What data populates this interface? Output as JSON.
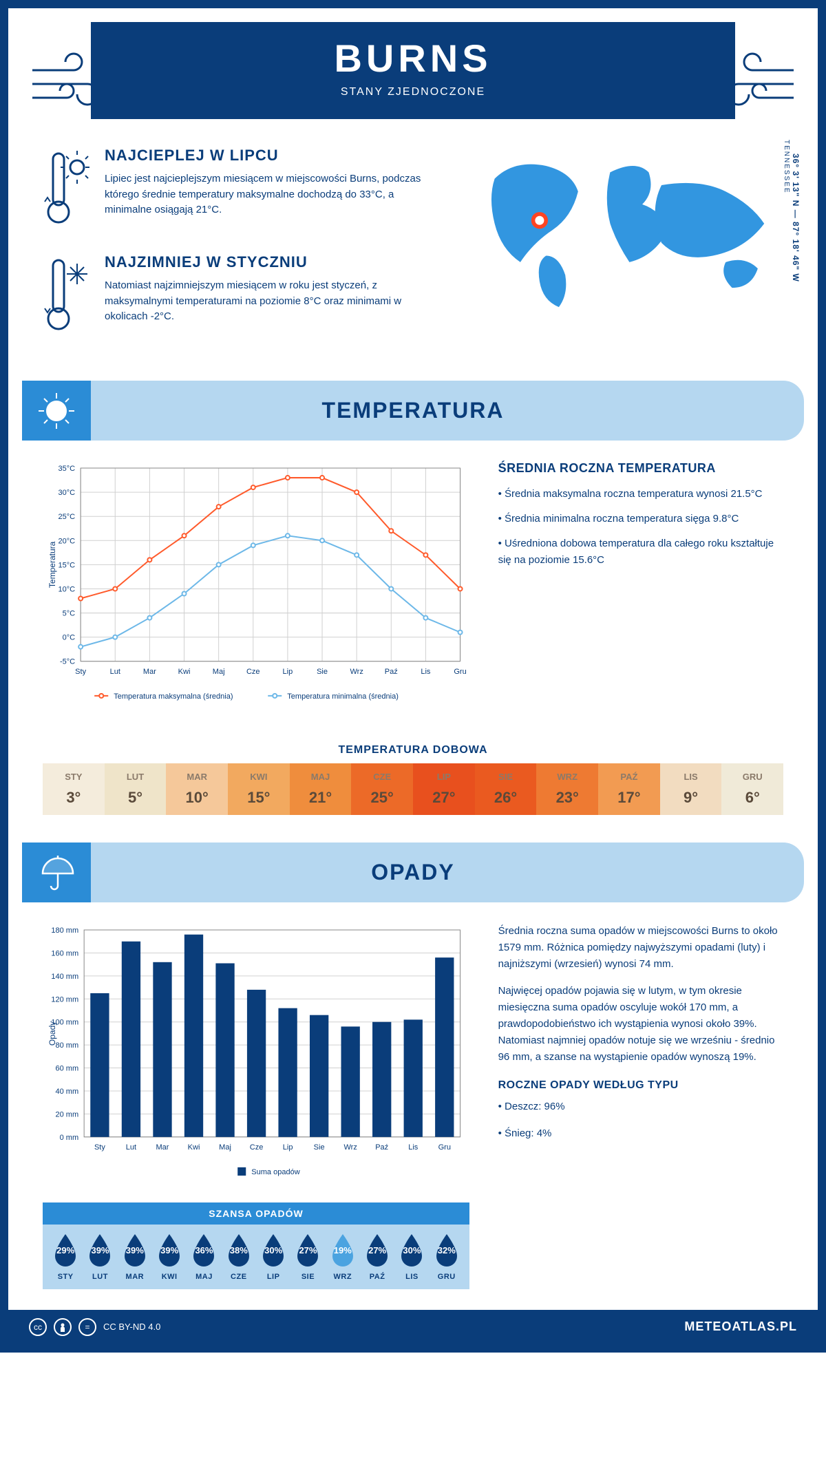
{
  "header": {
    "title": "BURNS",
    "subtitle": "STANY ZJEDNOCZONE"
  },
  "location": {
    "state": "TENNESSEE",
    "coords": "36° 3' 13\" N — 87° 18' 46\" W",
    "marker_color": "#ff4422"
  },
  "intro": {
    "hot": {
      "title": "NAJCIEPLEJ W LIPCU",
      "text": "Lipiec jest najcieplejszym miesiącem w miejscowości Burns, podczas którego średnie temperatury maksymalne dochodzą do 33°C, a minimalne osiągają 21°C."
    },
    "cold": {
      "title": "NAJZIMNIEJ W STYCZNIU",
      "text": "Natomiast najzimniejszym miesiącem w roku jest styczeń, z maksymalnymi temperaturami na poziomie 8°C oraz minimami w okolicach -2°C."
    }
  },
  "temperature_section": {
    "title": "TEMPERATURA",
    "chart": {
      "type": "line",
      "months": [
        "Sty",
        "Lut",
        "Mar",
        "Kwi",
        "Maj",
        "Cze",
        "Lip",
        "Sie",
        "Wrz",
        "Paź",
        "Lis",
        "Gru"
      ],
      "series": [
        {
          "label": "Temperatura maksymalna (średnia)",
          "color": "#ff5a2b",
          "values": [
            8,
            10,
            16,
            21,
            27,
            31,
            33,
            33,
            30,
            22,
            17,
            10
          ]
        },
        {
          "label": "Temperatura minimalna (średnia)",
          "color": "#6db8e8",
          "values": [
            -2,
            0,
            4,
            9,
            15,
            19,
            21,
            20,
            17,
            10,
            4,
            1
          ]
        }
      ],
      "ylabel": "Temperatura",
      "ylim": [
        -5,
        35
      ],
      "ytick_step": 5,
      "grid_color": "#d0d0d0",
      "line_width": 2,
      "marker_size": 3
    },
    "annual": {
      "heading": "ŚREDNIA ROCZNA TEMPERATURA",
      "bullets": [
        "Średnia maksymalna roczna temperatura wynosi 21.5°C",
        "Średnia minimalna roczna temperatura sięga 9.8°C",
        "Uśredniona dobowa temperatura dla całego roku kształtuje się na poziomie 15.6°C"
      ]
    },
    "daily": {
      "title": "TEMPERATURA DOBOWA",
      "months": [
        "STY",
        "LUT",
        "MAR",
        "KWI",
        "MAJ",
        "CZE",
        "LIP",
        "SIE",
        "WRZ",
        "PAŹ",
        "LIS",
        "GRU"
      ],
      "values": [
        "3°",
        "5°",
        "10°",
        "15°",
        "21°",
        "25°",
        "27°",
        "26°",
        "23°",
        "17°",
        "9°",
        "6°"
      ],
      "colors": [
        "#f4ecdc",
        "#efe4c9",
        "#f5c89a",
        "#f2a95f",
        "#ef8d3d",
        "#ec6a28",
        "#e8501e",
        "#ea5a20",
        "#ee7a32",
        "#f29b52",
        "#f2dcc0",
        "#f0ead8"
      ]
    }
  },
  "precip_section": {
    "title": "OPADY",
    "chart": {
      "type": "bar",
      "months": [
        "Sty",
        "Lut",
        "Mar",
        "Kwi",
        "Maj",
        "Cze",
        "Lip",
        "Sie",
        "Wrz",
        "Paź",
        "Lis",
        "Gru"
      ],
      "values": [
        125,
        170,
        152,
        176,
        151,
        128,
        112,
        106,
        96,
        100,
        102,
        156
      ],
      "bar_color": "#0a3d7a",
      "ylabel": "Opady",
      "ylim": [
        0,
        180
      ],
      "ytick_step": 20,
      "grid_color": "#d0d0d0",
      "legend": "Suma opadów"
    },
    "text": {
      "p1": "Średnia roczna suma opadów w miejscowości Burns to około 1579 mm. Różnica pomiędzy najwyższymi opadami (luty) i najniższymi (wrzesień) wynosi 74 mm.",
      "p2": "Najwięcej opadów pojawia się w lutym, w tym okresie miesięczna suma opadów oscyluje wokół 170 mm, a prawdopodobieństwo ich wystąpienia wynosi około 39%. Natomiast najmniej opadów notuje się we wrześniu - średnio 96 mm, a szanse na wystąpienie opadów wynoszą 19%.",
      "type_heading": "ROCZNE OPADY WEDŁUG TYPU",
      "type_bullets": [
        "Deszcz: 96%",
        "Śnieg: 4%"
      ]
    },
    "chance": {
      "title": "SZANSA OPADÓW",
      "months": [
        "STY",
        "LUT",
        "MAR",
        "KWI",
        "MAJ",
        "CZE",
        "LIP",
        "SIE",
        "WRZ",
        "PAŹ",
        "LIS",
        "GRU"
      ],
      "values": [
        "29%",
        "39%",
        "39%",
        "39%",
        "36%",
        "38%",
        "30%",
        "27%",
        "19%",
        "27%",
        "30%",
        "32%"
      ],
      "drop_color": "#0a3d7a",
      "drop_min_color": "#4ba3e0"
    }
  },
  "footer": {
    "license": "CC BY-ND 4.0",
    "site": "METEOATLAS.PL"
  },
  "palette": {
    "primary": "#0a3d7a",
    "light_blue": "#b5d7f0",
    "mid_blue": "#2b8cd6",
    "map_blue": "#3296e0"
  }
}
